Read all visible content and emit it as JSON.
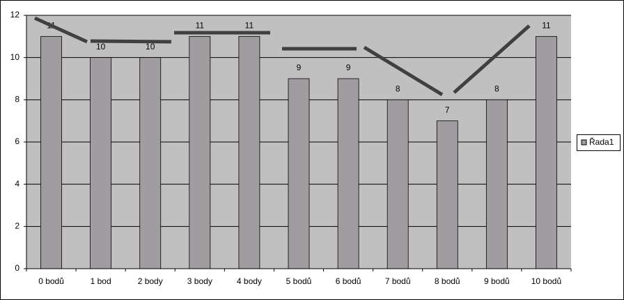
{
  "chart_data": {
    "type": "bar",
    "categories": [
      "0 bodů",
      "1 bod",
      "2 body",
      "3 body",
      "4 body",
      "5 bodů",
      "6 bodů",
      "7 bodů",
      "8 bodů",
      "9 bodů",
      "10 bodů"
    ],
    "series": [
      {
        "name": "Řada1",
        "color": "#a09ca0",
        "values": [
          11,
          10,
          10,
          11,
          11,
          9,
          9,
          8,
          7,
          8,
          11
        ]
      }
    ],
    "ylim": [
      0,
      12
    ],
    "yticks": [
      0,
      2,
      4,
      6,
      8,
      10,
      12
    ],
    "grid": true,
    "legend": "right"
  }
}
